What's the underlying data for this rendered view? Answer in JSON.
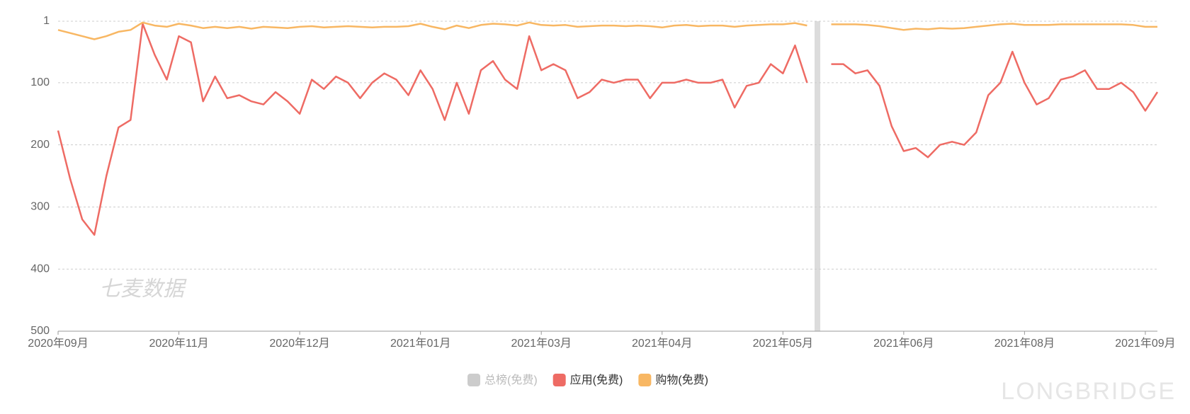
{
  "chart_data": {
    "type": "line",
    "categories": [
      "2020年09月",
      null,
      null,
      null,
      null,
      null,
      null,
      null,
      null,
      null,
      "2020年11月",
      null,
      null,
      null,
      null,
      null,
      null,
      null,
      null,
      null,
      "2020年12月",
      null,
      null,
      null,
      null,
      null,
      null,
      null,
      null,
      null,
      "2021年01月",
      null,
      null,
      null,
      null,
      null,
      null,
      null,
      null,
      null,
      "2021年03月",
      null,
      null,
      null,
      null,
      null,
      null,
      null,
      null,
      null,
      "2021年04月",
      null,
      null,
      null,
      null,
      null,
      null,
      null,
      null,
      null,
      "2021年05月",
      null,
      null,
      null,
      null,
      null,
      null,
      null,
      null,
      null,
      "2021年06月",
      null,
      null,
      null,
      null,
      null,
      null,
      null,
      null,
      null,
      "2021年08月",
      null,
      null,
      null,
      null,
      null,
      null,
      null,
      null,
      null,
      "2021年09月",
      null
    ],
    "series": [
      {
        "name": "总榜(免费)",
        "color": "#cccccc",
        "hidden": true,
        "values": [
          null,
          null,
          null,
          null,
          null,
          null,
          null,
          null,
          null,
          null,
          null,
          null,
          null,
          null,
          null,
          null,
          null,
          null,
          null,
          null,
          null,
          null,
          null,
          null,
          null,
          null,
          null,
          null,
          null,
          null,
          null,
          null,
          null,
          null,
          null,
          null,
          null,
          null,
          null,
          null,
          null,
          null,
          null,
          null,
          null,
          null,
          null,
          null,
          null,
          null,
          null,
          null,
          null,
          null,
          null,
          null,
          null,
          null,
          null,
          null,
          null,
          null,
          null,
          null,
          null,
          null,
          null,
          null,
          null,
          null,
          null,
          null,
          null,
          null,
          null,
          null,
          null,
          null,
          null,
          null,
          null,
          null,
          null,
          null,
          null,
          null,
          null,
          null,
          null,
          null,
          null,
          null
        ]
      },
      {
        "name": "应用(免费)",
        "color": "#ee6b64",
        "values": [
          177,
          255,
          320,
          345,
          250,
          172,
          160,
          5,
          55,
          95,
          25,
          35,
          130,
          90,
          125,
          120,
          130,
          135,
          115,
          130,
          150,
          95,
          110,
          90,
          100,
          125,
          100,
          85,
          95,
          120,
          80,
          110,
          160,
          100,
          150,
          80,
          65,
          95,
          110,
          25,
          80,
          70,
          80,
          125,
          115,
          95,
          100,
          95,
          95,
          125,
          100,
          100,
          95,
          100,
          100,
          95,
          140,
          105,
          100,
          70,
          85,
          40,
          100,
          null,
          70,
          70,
          85,
          80,
          105,
          170,
          210,
          205,
          220,
          200,
          195,
          200,
          180,
          120,
          100,
          50,
          100,
          135,
          125,
          95,
          90,
          80,
          110,
          110,
          100,
          115,
          145,
          115
        ]
      },
      {
        "name": "购物(免费)",
        "color": "#f8b763",
        "values": [
          15,
          20,
          25,
          30,
          25,
          18,
          15,
          3,
          8,
          10,
          5,
          8,
          12,
          10,
          12,
          10,
          13,
          10,
          11,
          12,
          10,
          9,
          11,
          10,
          9,
          10,
          11,
          10,
          10,
          9,
          5,
          10,
          14,
          8,
          12,
          7,
          5,
          6,
          8,
          3,
          7,
          8,
          7,
          10,
          9,
          8,
          8,
          9,
          8,
          9,
          11,
          8,
          7,
          9,
          8,
          8,
          10,
          8,
          7,
          6,
          6,
          4,
          8,
          null,
          6,
          6,
          6,
          7,
          9,
          12,
          15,
          13,
          14,
          12,
          13,
          12,
          10,
          8,
          6,
          5,
          7,
          7,
          7,
          6,
          6,
          6,
          6,
          6,
          6,
          7,
          10,
          10
        ]
      }
    ],
    "ylim": [
      500,
      1
    ],
    "yticks": [
      1,
      100,
      200,
      300,
      400,
      500
    ],
    "grid": true,
    "watermark": "七麦数据",
    "brand": "LONGBRIDGE"
  }
}
